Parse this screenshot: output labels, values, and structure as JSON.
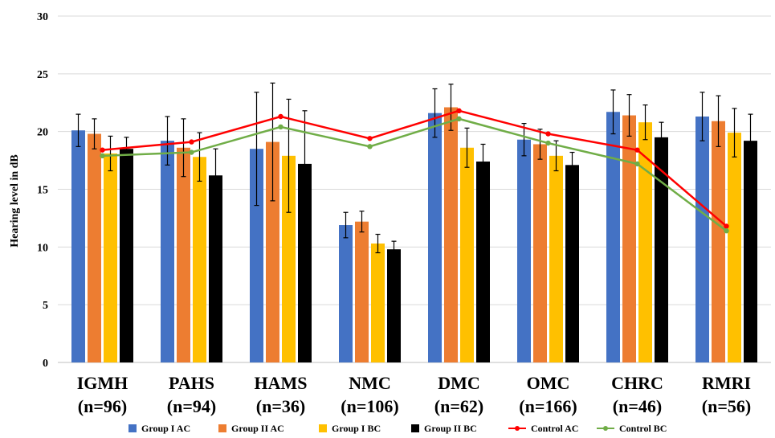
{
  "chart_data": {
    "type": "bar",
    "title": "",
    "ylabel": "Hearing level in dB",
    "xlabel": "",
    "ylim": [
      0,
      30
    ],
    "yticks": [
      0,
      5,
      10,
      15,
      20,
      25,
      30
    ],
    "grid": "horizontal",
    "legend_position": "bottom",
    "categories": [
      {
        "name": "IGMH",
        "n": "(n=96)"
      },
      {
        "name": "PAHS",
        "n": "(n=94)"
      },
      {
        "name": "HAMS",
        "n": "(n=36)"
      },
      {
        "name": "NMC",
        "n": "(n=106)"
      },
      {
        "name": "DMC",
        "n": "(n=62)"
      },
      {
        "name": "OMC",
        "n": "(n=166)"
      },
      {
        "name": "CHRC",
        "n": "(n=46)"
      },
      {
        "name": "RMRI",
        "n": "(n=56)"
      }
    ],
    "bar_series": [
      {
        "name": "Group I AC",
        "color": "#4472c4",
        "values": [
          20.1,
          19.2,
          18.5,
          11.9,
          21.6,
          19.3,
          21.7,
          21.3
        ],
        "errors": [
          1.4,
          2.1,
          4.9,
          1.1,
          2.1,
          1.4,
          1.9,
          2.1
        ]
      },
      {
        "name": "Group II AC",
        "color": "#ed7d31",
        "values": [
          19.8,
          18.6,
          19.1,
          12.2,
          22.1,
          18.9,
          21.4,
          20.9
        ],
        "errors": [
          1.3,
          2.5,
          5.1,
          0.9,
          2.0,
          1.3,
          1.8,
          2.2
        ]
      },
      {
        "name": "Group I  BC",
        "color": "#ffc000",
        "values": [
          18.1,
          17.8,
          17.9,
          10.3,
          18.6,
          17.9,
          20.8,
          19.9
        ],
        "errors": [
          1.5,
          2.1,
          4.9,
          0.8,
          1.7,
          1.3,
          1.5,
          2.1
        ]
      },
      {
        "name": "Group II BC",
        "color": "#000000",
        "values": [
          18.5,
          16.2,
          17.2,
          9.8,
          17.4,
          17.1,
          19.5,
          19.2
        ],
        "errors": [
          1.0,
          2.3,
          4.6,
          0.7,
          1.5,
          1.1,
          1.3,
          2.3
        ]
      }
    ],
    "line_series": [
      {
        "name": "Control AC",
        "color": "#ff0000",
        "values": [
          18.4,
          19.1,
          21.3,
          19.4,
          21.8,
          19.8,
          18.4,
          11.8
        ]
      },
      {
        "name": "Control BC",
        "color": "#70ad47",
        "values": [
          17.9,
          18.2,
          20.4,
          18.7,
          21.1,
          19.0,
          17.2,
          11.4
        ]
      }
    ]
  }
}
